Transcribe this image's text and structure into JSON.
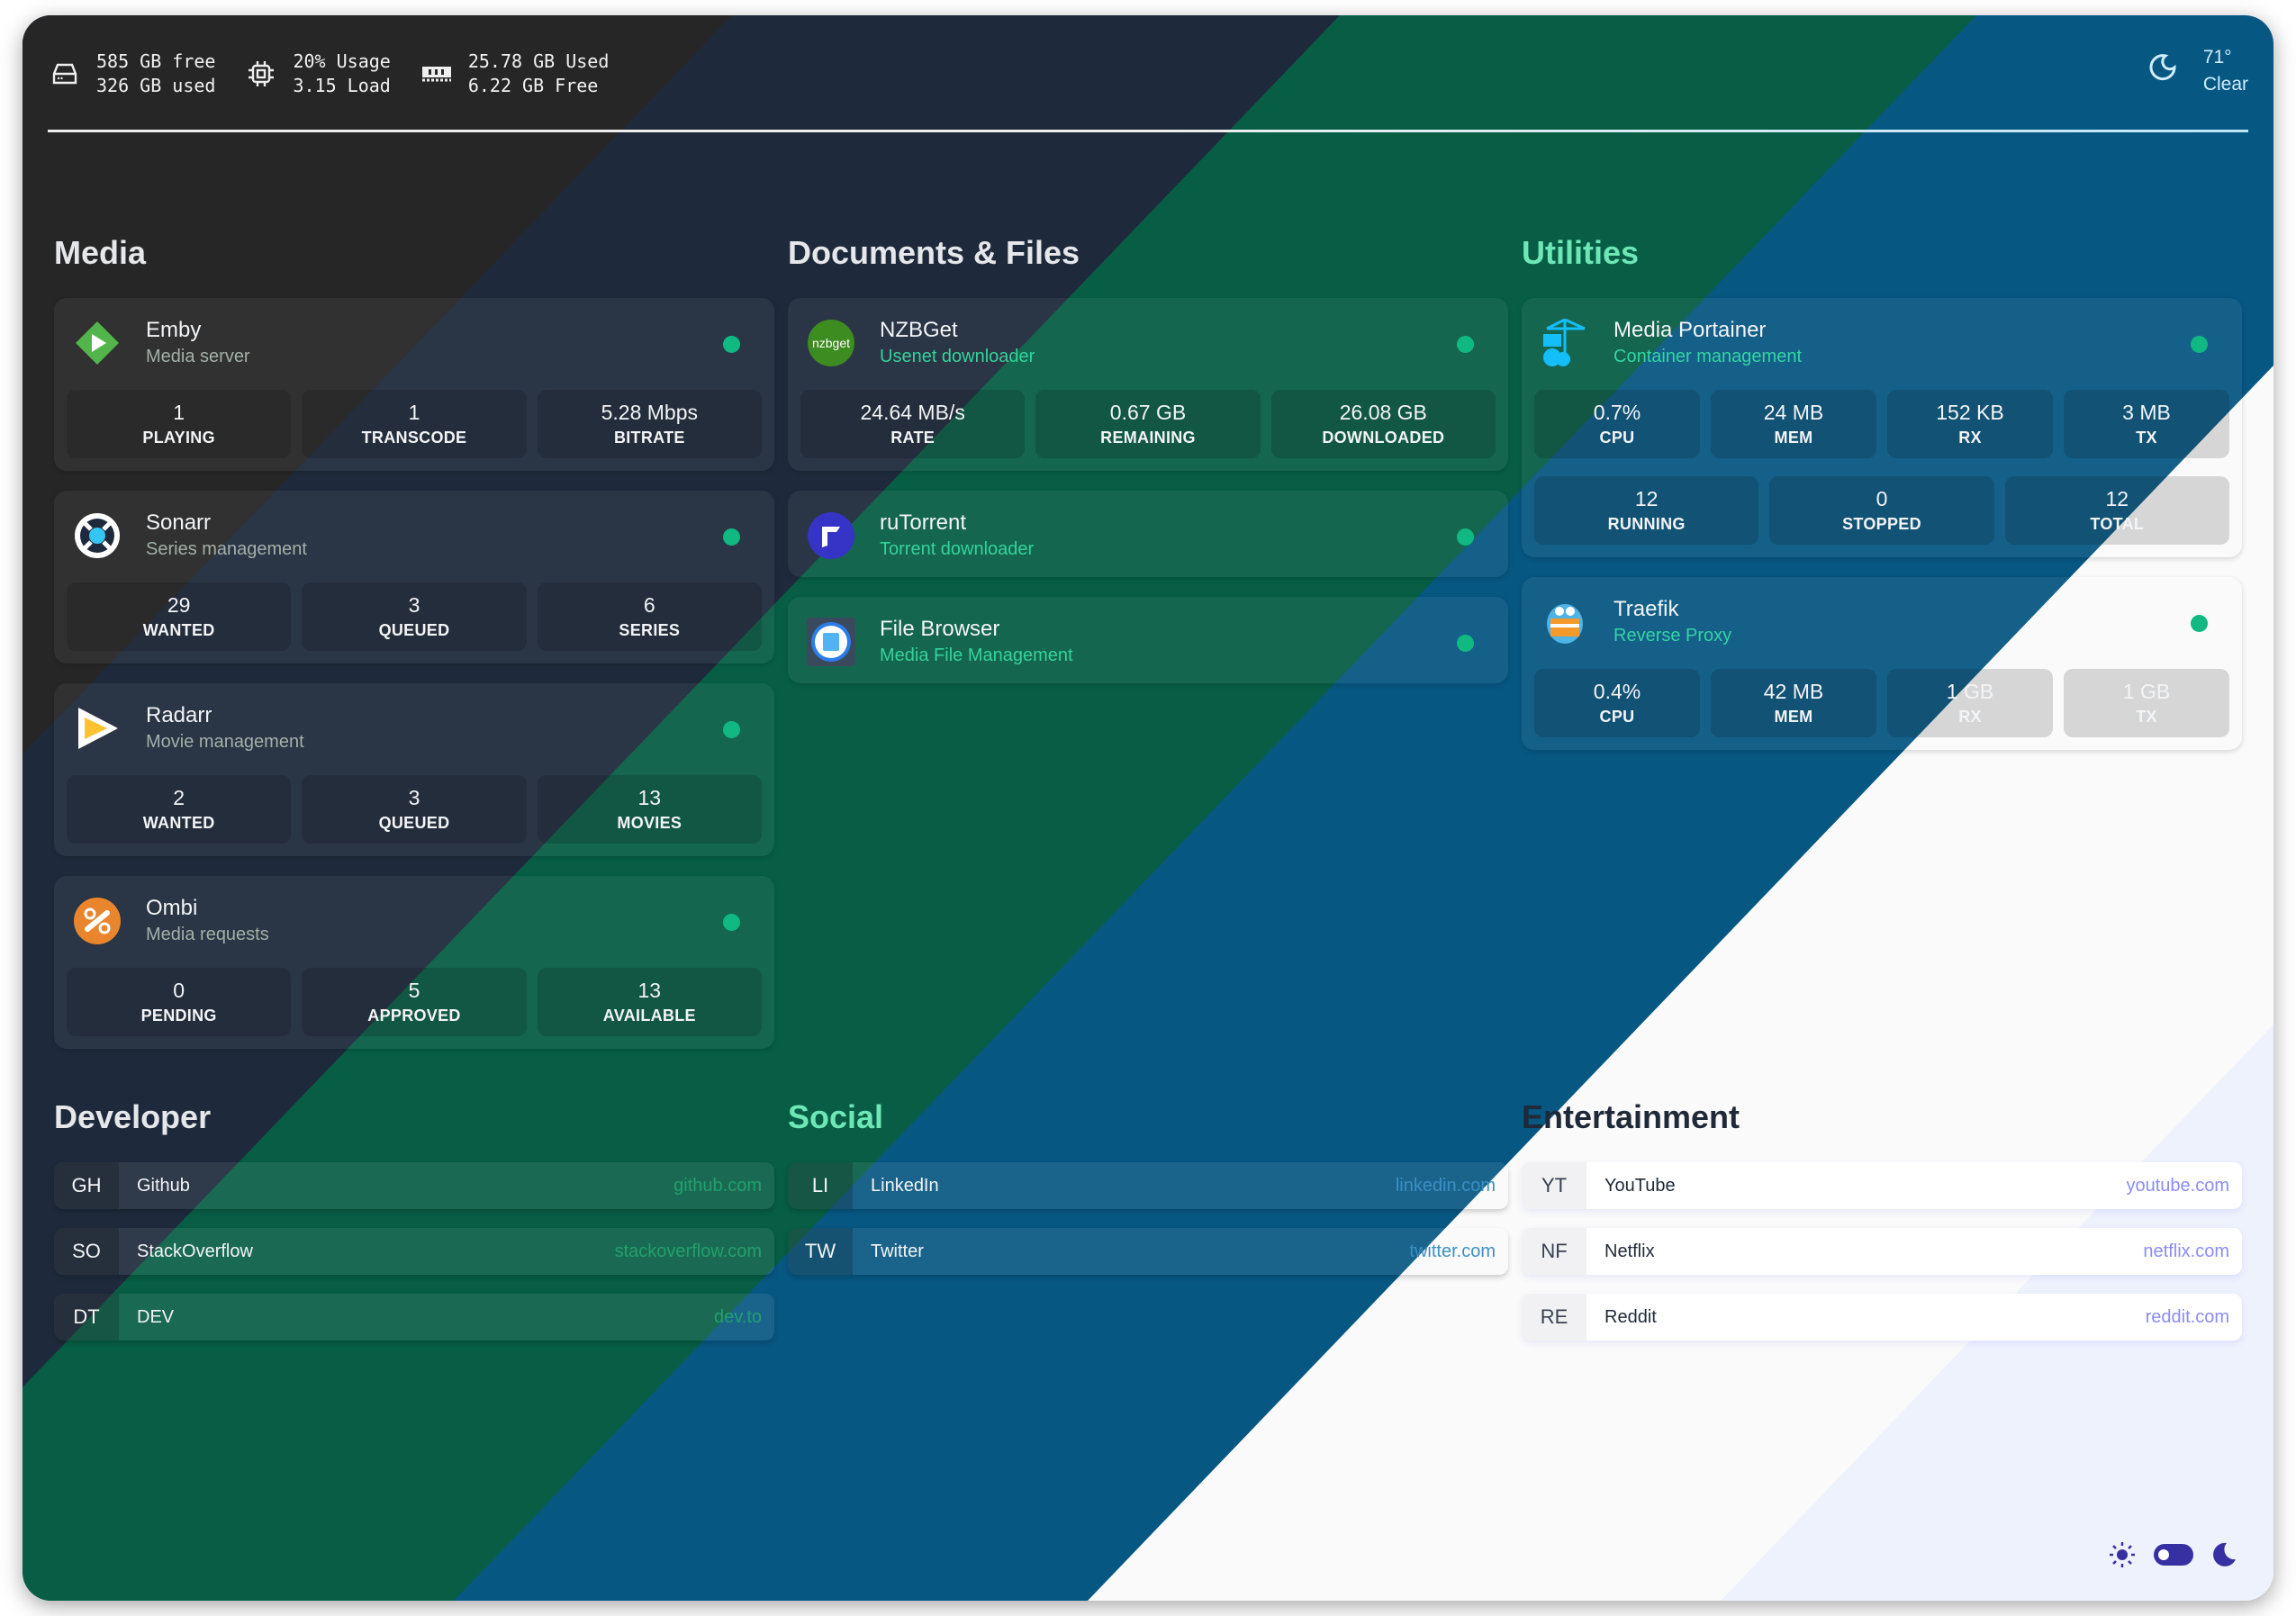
{
  "topbar": {
    "disk": {
      "icon": "hard-drive-icon",
      "line1": "585 GB free",
      "line2": "326 GB used"
    },
    "cpu": {
      "icon": "cpu-icon",
      "line1": "20% Usage",
      "line2": "3.15 Load"
    },
    "memory": {
      "icon": "memory-icon",
      "line1": "25.78 GB Used",
      "line2": "6.22 GB Free"
    },
    "weather": {
      "icon": "moon-icon",
      "temp": "71°",
      "condition": "Clear"
    }
  },
  "colors": {
    "status_up": "#10b981",
    "band_dark": "#262626",
    "band_navy": "#1e2a3b",
    "band_green": "#075e45",
    "band_blue": "#075783",
    "band_light": "#fafafa",
    "band_lavender": "#eef2fd",
    "accent_indigo": "#3730a3"
  },
  "sections": {
    "media": {
      "title": "Media",
      "cards": [
        {
          "name": "Emby",
          "sub": "Media server",
          "icon": "emby-icon",
          "stats": [
            {
              "v": "1",
              "l": "PLAYING"
            },
            {
              "v": "1",
              "l": "TRANSCODE"
            },
            {
              "v": "5.28 Mbps",
              "l": "BITRATE"
            }
          ]
        },
        {
          "name": "Sonarr",
          "sub": "Series management",
          "icon": "sonarr-icon",
          "stats": [
            {
              "v": "29",
              "l": "WANTED"
            },
            {
              "v": "3",
              "l": "QUEUED"
            },
            {
              "v": "6",
              "l": "SERIES"
            }
          ]
        },
        {
          "name": "Radarr",
          "sub": "Movie management",
          "icon": "radarr-icon",
          "stats": [
            {
              "v": "2",
              "l": "WANTED"
            },
            {
              "v": "3",
              "l": "QUEUED"
            },
            {
              "v": "13",
              "l": "MOVIES"
            }
          ]
        },
        {
          "name": "Ombi",
          "sub": "Media requests",
          "icon": "ombi-icon",
          "stats": [
            {
              "v": "0",
              "l": "PENDING"
            },
            {
              "v": "5",
              "l": "APPROVED"
            },
            {
              "v": "13",
              "l": "AVAILABLE"
            }
          ]
        }
      ]
    },
    "documents": {
      "title": "Documents & Files",
      "cards": [
        {
          "name": "NZBGet",
          "sub": "Usenet downloader",
          "icon": "nzbget-icon",
          "logo_text": "nzbget",
          "stats": [
            {
              "v": "24.64 MB/s",
              "l": "RATE"
            },
            {
              "v": "0.67 GB",
              "l": "REMAINING"
            },
            {
              "v": "26.08 GB",
              "l": "DOWNLOADED"
            }
          ]
        },
        {
          "name": "ruTorrent",
          "sub": "Torrent downloader",
          "icon": "rutorrent-icon",
          "stats": []
        },
        {
          "name": "File Browser",
          "sub": "Media File Management",
          "icon": "file-browser-icon",
          "stats": []
        }
      ]
    },
    "utilities": {
      "title": "Utilities",
      "cards": [
        {
          "name": "Media Portainer",
          "sub": "Container management",
          "icon": "portainer-icon",
          "stats": [
            {
              "v": "0.7%",
              "l": "CPU"
            },
            {
              "v": "24 MB",
              "l": "MEM"
            },
            {
              "v": "152 KB",
              "l": "RX"
            },
            {
              "v": "3 MB",
              "l": "TX"
            }
          ],
          "stats2": [
            {
              "v": "12",
              "l": "RUNNING"
            },
            {
              "v": "0",
              "l": "STOPPED"
            },
            {
              "v": "12",
              "l": "TOTAL"
            }
          ]
        },
        {
          "name": "Traefik",
          "sub": "Reverse Proxy",
          "icon": "traefik-icon",
          "stats": [
            {
              "v": "0.4%",
              "l": "CPU"
            },
            {
              "v": "42 MB",
              "l": "MEM"
            },
            {
              "v": "1 GB",
              "l": "RX"
            },
            {
              "v": "1 GB",
              "l": "TX"
            }
          ]
        }
      ]
    },
    "developer": {
      "title": "Developer",
      "links": [
        {
          "abbr": "GH",
          "name": "Github",
          "url": "github.com"
        },
        {
          "abbr": "SO",
          "name": "StackOverflow",
          "url": "stackoverflow.com"
        },
        {
          "abbr": "DT",
          "name": "DEV",
          "url": "dev.to"
        }
      ]
    },
    "social": {
      "title": "Social",
      "links": [
        {
          "abbr": "LI",
          "name": "LinkedIn",
          "url": "linkedin.com"
        },
        {
          "abbr": "TW",
          "name": "Twitter",
          "url": "twitter.com"
        }
      ]
    },
    "entertainment": {
      "title": "Entertainment",
      "links": [
        {
          "abbr": "YT",
          "name": "YouTube",
          "url": "youtube.com"
        },
        {
          "abbr": "NF",
          "name": "Netflix",
          "url": "netflix.com"
        },
        {
          "abbr": "RE",
          "name": "Reddit",
          "url": "reddit.com"
        }
      ]
    }
  },
  "theme_toggle": {
    "light_icon": "sun-icon",
    "dark_icon": "moon-icon",
    "mode": "dark"
  }
}
